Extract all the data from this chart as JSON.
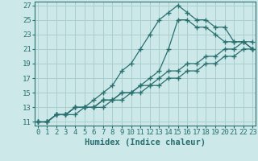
{
  "xlabel": "Humidex (Indice chaleur)",
  "bg_color": "#cce8e8",
  "grid_color": "#aacece",
  "line_color": "#2a7070",
  "lines": [
    {
      "x": [
        0,
        1,
        2,
        3,
        4,
        5,
        6,
        7,
        8,
        9,
        10,
        11,
        12,
        13,
        14,
        15,
        16,
        17,
        18,
        19,
        20,
        21,
        22,
        23
      ],
      "y": [
        11,
        11,
        12,
        12,
        12,
        13,
        13,
        13,
        14,
        14,
        15,
        15,
        16,
        16,
        17,
        17,
        18,
        18,
        19,
        19,
        20,
        20,
        21,
        21
      ]
    },
    {
      "x": [
        0,
        1,
        2,
        3,
        4,
        5,
        6,
        7,
        8,
        9,
        10,
        11,
        12,
        13,
        14,
        15,
        16,
        17,
        18,
        19,
        20,
        21,
        22,
        23
      ],
      "y": [
        11,
        11,
        12,
        12,
        13,
        13,
        13,
        14,
        14,
        15,
        15,
        16,
        16,
        17,
        18,
        18,
        19,
        19,
        20,
        20,
        21,
        21,
        22,
        21
      ]
    },
    {
      "x": [
        0,
        1,
        2,
        3,
        4,
        5,
        6,
        7,
        8,
        9,
        10,
        11,
        12,
        13,
        14,
        15,
        16,
        17,
        18,
        19,
        20,
        21,
        22,
        23
      ],
      "y": [
        11,
        11,
        12,
        12,
        13,
        13,
        14,
        15,
        16,
        18,
        19,
        21,
        23,
        25,
        26,
        27,
        26,
        25,
        25,
        24,
        24,
        22,
        22,
        22
      ]
    },
    {
      "x": [
        0,
        1,
        2,
        3,
        4,
        5,
        6,
        7,
        8,
        9,
        10,
        11,
        12,
        13,
        14,
        15,
        16,
        17,
        18,
        19,
        20,
        21,
        22,
        23
      ],
      "y": [
        11,
        11,
        12,
        12,
        13,
        13,
        13,
        14,
        14,
        15,
        15,
        16,
        17,
        18,
        21,
        25,
        25,
        24,
        24,
        23,
        22,
        22,
        22,
        21
      ]
    }
  ],
  "xlim": [
    -0.3,
    23.3
  ],
  "ylim": [
    10.5,
    27.5
  ],
  "yticks": [
    11,
    13,
    15,
    17,
    19,
    21,
    23,
    25,
    27
  ],
  "xticks": [
    0,
    1,
    2,
    3,
    4,
    5,
    6,
    7,
    8,
    9,
    10,
    11,
    12,
    13,
    14,
    15,
    16,
    17,
    18,
    19,
    20,
    21,
    22,
    23
  ],
  "tick_fontsize": 6.5,
  "xlabel_fontsize": 7.5
}
